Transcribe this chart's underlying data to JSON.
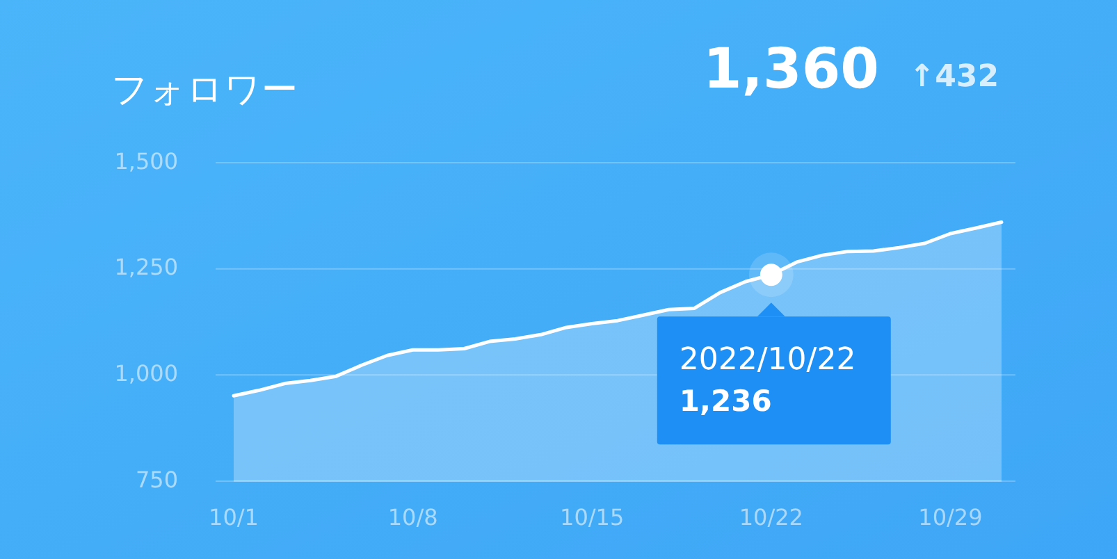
{
  "chart_data": {
    "type": "area",
    "title": "フォロワー",
    "annotations": [
      "1,360",
      "↑432",
      {
        "text": "2022/10/22\n1,236",
        "x": "2022-10-22",
        "y": 1236
      }
    ],
    "x": [
      "2022-10-01",
      "2022-10-02",
      "2022-10-03",
      "2022-10-04",
      "2022-10-05",
      "2022-10-06",
      "2022-10-07",
      "2022-10-08",
      "2022-10-09",
      "2022-10-10",
      "2022-10-11",
      "2022-10-12",
      "2022-10-13",
      "2022-10-14",
      "2022-10-15",
      "2022-10-16",
      "2022-10-17",
      "2022-10-18",
      "2022-10-19",
      "2022-10-20",
      "2022-10-21",
      "2022-10-22",
      "2022-10-23",
      "2022-10-24",
      "2022-10-25",
      "2022-10-26",
      "2022-10-27",
      "2022-10-28",
      "2022-10-29",
      "2022-10-30",
      "2022-10-31"
    ],
    "series": [
      {
        "color": "#ffffff",
        "values": [
          951,
          964,
          980,
          987,
          997,
          1023,
          1046,
          1059,
          1059,
          1062,
          1079,
          1085,
          1095,
          1112,
          1121,
          1128,
          1141,
          1154,
          1157,
          1194,
          1220,
          1236,
          1266,
          1282,
          1291,
          1292,
          1300,
          1310,
          1333,
          1346,
          1360
        ]
      }
    ],
    "xlim": [
      "2022-10-01",
      "2022-10-31"
    ],
    "xticks": [
      {
        "value": "2022-10-01",
        "label": "10/1"
      },
      {
        "value": "2022-10-08",
        "label": "10/8"
      },
      {
        "value": "2022-10-15",
        "label": "10/15"
      },
      {
        "value": "2022-10-22",
        "label": "10/22"
      },
      {
        "value": "2022-10-29",
        "label": "10/29"
      }
    ],
    "ylim": [
      750,
      1500
    ],
    "yticks": [
      {
        "value": 750,
        "label": "750"
      },
      {
        "value": 1000,
        "label": "1,000"
      },
      {
        "value": 1250,
        "label": "1,250"
      },
      {
        "value": 1500,
        "label": "1,500"
      }
    ],
    "grid": "y",
    "marker": "none",
    "line_style": "solid"
  }
}
